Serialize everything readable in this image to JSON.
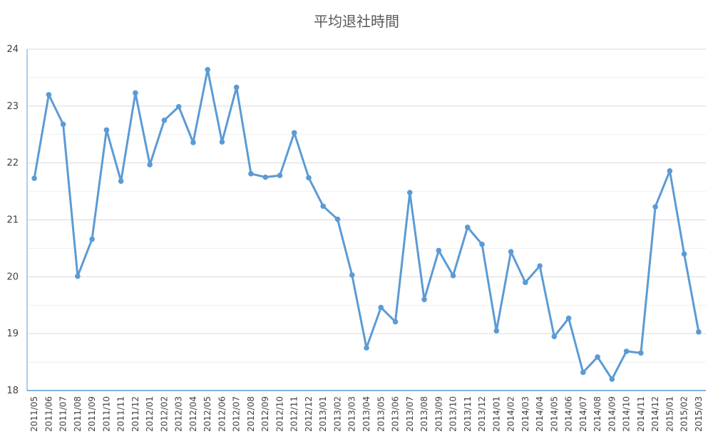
{
  "chart_data": {
    "type": "line",
    "title": "平均退社時間",
    "xlabel": "",
    "ylabel": "",
    "ylim": [
      18,
      24
    ],
    "yticks": [
      18,
      19,
      20,
      21,
      22,
      23,
      24
    ],
    "grid": true,
    "minor_grid": true,
    "legend": "none",
    "line_color": "#5b9bd5",
    "categories": [
      "2011/05",
      "2011/06",
      "2011/07",
      "2011/08",
      "2011/09",
      "2011/10",
      "2011/11",
      "2011/12",
      "2012/01",
      "2012/02",
      "2012/03",
      "2012/04",
      "2012/05",
      "2012/06",
      "2012/07",
      "2012/08",
      "2012/09",
      "2012/10",
      "2012/11",
      "2012/12",
      "2013/01",
      "2013/02",
      "2013/03",
      "2013/04",
      "2013/05",
      "2013/06",
      "2013/07",
      "2013/08",
      "2013/09",
      "2013/10",
      "2013/11",
      "2013/12",
      "2014/01",
      "2014/02",
      "2014/03",
      "2014/04",
      "2014/05",
      "2014/06",
      "2014/07",
      "2014/08",
      "2014/09",
      "2014/10",
      "2014/11",
      "2014/12",
      "2015/01",
      "2015/02",
      "2015/03"
    ],
    "series": [
      {
        "values": [
          21.73,
          23.2,
          22.68,
          20.01,
          20.66,
          22.58,
          21.68,
          23.23,
          21.97,
          22.75,
          22.99,
          22.36,
          23.64,
          22.37,
          23.33,
          21.81,
          21.75,
          21.78,
          22.53,
          21.74,
          21.24,
          21.01,
          20.03,
          18.75,
          19.46,
          19.21,
          21.48,
          19.6,
          20.46,
          20.02,
          20.87,
          20.57,
          19.05,
          20.44,
          19.9,
          20.19,
          18.95,
          19.27,
          18.32,
          18.59,
          18.2,
          18.69,
          18.66,
          21.23,
          21.86,
          20.4,
          19.03
        ]
      }
    ]
  }
}
